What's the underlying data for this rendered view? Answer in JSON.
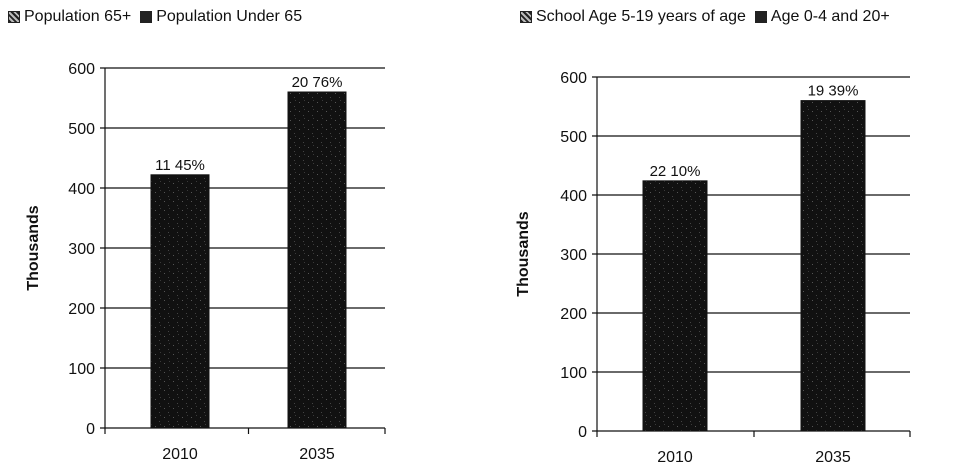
{
  "chart_data": [
    {
      "type": "bar",
      "legend": [
        "Population 65+",
        "Population Under 65"
      ],
      "ylabel": "Thousands",
      "ylim": [
        0,
        600
      ],
      "yticks": [
        0,
        100,
        200,
        300,
        400,
        500,
        600
      ],
      "categories": [
        "2010",
        "2035"
      ],
      "values": [
        422,
        560
      ],
      "data_labels": [
        "11 45%",
        "20 76%"
      ]
    },
    {
      "type": "bar",
      "legend": [
        "School Age 5-19 years of age",
        "Age 0-4 and 20+"
      ],
      "ylabel": "Thousands",
      "ylim": [
        0,
        600
      ],
      "yticks": [
        0,
        100,
        200,
        300,
        400,
        500,
        600
      ],
      "categories": [
        "2010",
        "2035"
      ],
      "values": [
        424,
        560
      ],
      "data_labels": [
        "22 10%",
        "19 39%"
      ]
    }
  ],
  "colors": {
    "bar": "#111111",
    "grid": "#111111"
  }
}
